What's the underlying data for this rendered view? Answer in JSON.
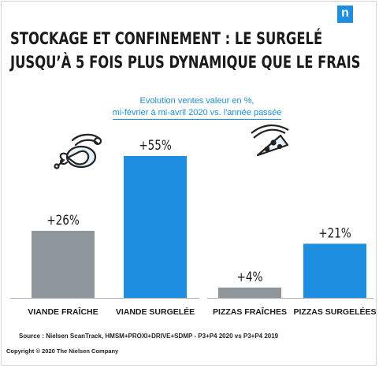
{
  "brand": {
    "logo_letter": "n",
    "color": "#1e8fe0"
  },
  "title": {
    "line1": "STOCKAGE ET CONFINEMENT : LE SURGELÉ",
    "line2": "JUSQU’À 5 FOIS PLUS DYNAMIQUE QUE LE FRAIS"
  },
  "subtitle": {
    "line1": "Evolution ventes valeur en %,",
    "line2": "mi-février à mi-avril 2020 vs. l'année passée"
  },
  "chart_data": {
    "type": "bar",
    "categories": [
      "VIANDE FRAÎCHE",
      "VIANDE SURGELÉE",
      "PIZZAS FRAÎCHES",
      "PIZZAS SURGELÉES"
    ],
    "values": [
      26,
      55,
      4,
      21
    ],
    "value_labels": [
      "+26%",
      "+55%",
      "+4%",
      "+21%"
    ],
    "groups": [
      {
        "icon": "meat-icon",
        "categories": [
          "VIANDE FRAÎCHE",
          "VIANDE SURGELÉE"
        ]
      },
      {
        "icon": "pizza-icon",
        "categories": [
          "PIZZAS FRAÎCHES",
          "PIZZAS SURGELÉES"
        ]
      }
    ],
    "colors": {
      "fresh": "#8f969b",
      "frozen": "#1e8fe0"
    },
    "ylim": [
      0,
      60
    ]
  },
  "footer": {
    "source": "Source : Nielsen ScanTrack, HMSM+PROXI+DRIVE+SDMP  -  P3+P4 2020 vs P3+P4 2019",
    "copyright": "Copyright © 2020 The Nielsen Company"
  }
}
